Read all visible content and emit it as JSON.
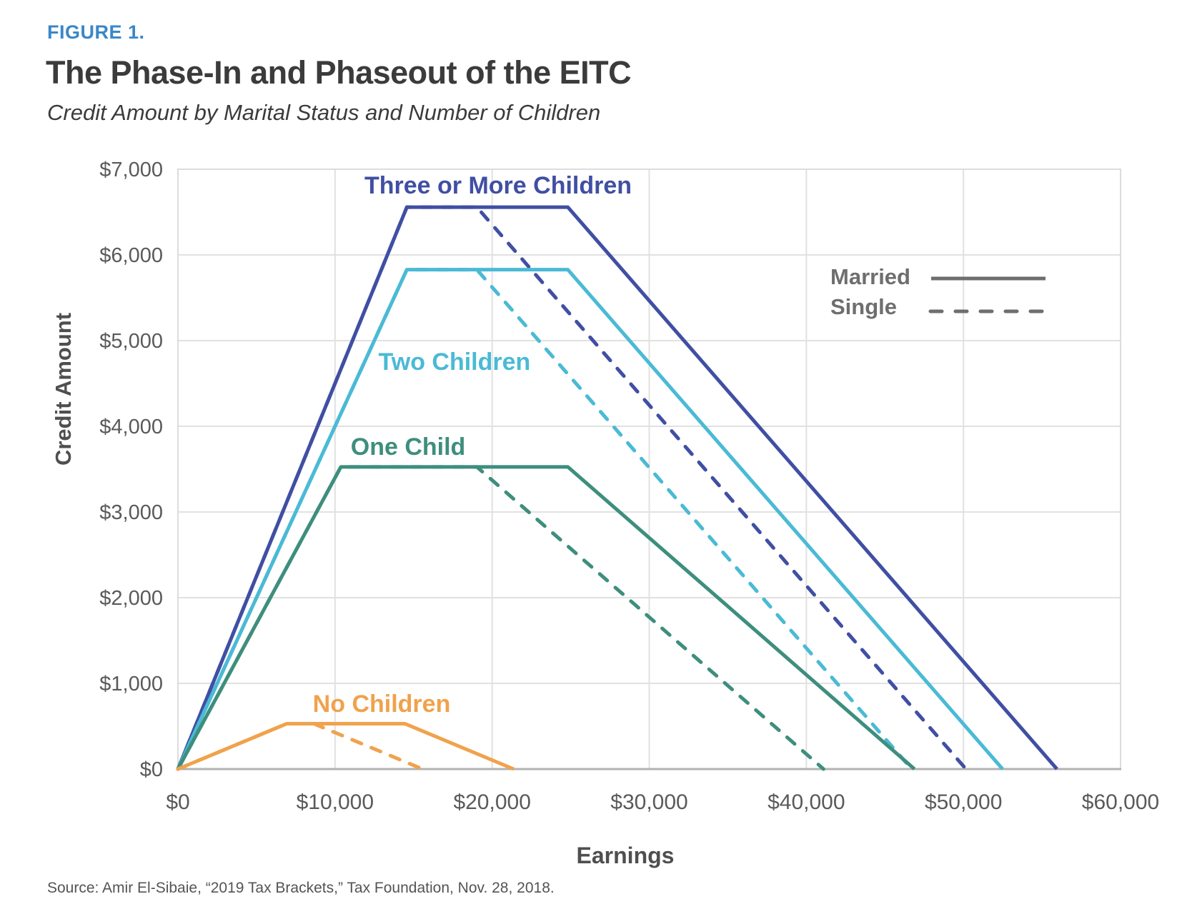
{
  "page": {
    "figure_label": "FIGURE 1.",
    "title": "The Phase-In and Phaseout of the EITC",
    "subtitle": "Credit Amount by Marital Status and Number of Children",
    "source": "Source: Amir El-Sibaie, “2019 Tax Brackets,” Tax Foundation, Nov. 28, 2018."
  },
  "colors": {
    "figure_label": "#3A87C8",
    "title": "#3B3B3B",
    "subtitle": "#3B3B3B",
    "source": "#545454",
    "tick_text": "#5A5A5A",
    "axis_title_text": "#4F4F4F",
    "gridline": "#E1E1E1",
    "plot_border": "#DCDCDC",
    "baseline": "#B3B3B3",
    "legend": "#6E6E6E",
    "three_children": "#404FA3",
    "two_children": "#4ABAD5",
    "one_child": "#3E8E7D",
    "no_children": "#F0A24C"
  },
  "chart_data": {
    "type": "line",
    "title": "The Phase-In and Phaseout of the EITC",
    "subtitle": "Credit Amount by Marital Status and Number of Children",
    "xlabel": "Earnings",
    "ylabel": "Credit Amount",
    "xlim": [
      0,
      60000
    ],
    "ylim": [
      0,
      7000
    ],
    "grid": true,
    "legend_position": "upper right",
    "x_ticks": [
      {
        "v": 0,
        "label": "$0"
      },
      {
        "v": 10000,
        "label": "$10,000"
      },
      {
        "v": 20000,
        "label": "$20,000"
      },
      {
        "v": 30000,
        "label": "$30,000"
      },
      {
        "v": 40000,
        "label": "$40,000"
      },
      {
        "v": 50000,
        "label": "$50,000"
      },
      {
        "v": 60000,
        "label": "$60,000"
      }
    ],
    "y_ticks": [
      {
        "v": 0,
        "label": "$0"
      },
      {
        "v": 1000,
        "label": "$1,000"
      },
      {
        "v": 2000,
        "label": "$2,000"
      },
      {
        "v": 3000,
        "label": "$3,000"
      },
      {
        "v": 4000,
        "label": "$4,000"
      },
      {
        "v": 5000,
        "label": "$5,000"
      },
      {
        "v": 6000,
        "label": "$6,000"
      },
      {
        "v": 7000,
        "label": "$7,000"
      }
    ],
    "legend": {
      "items": [
        {
          "label": "Married",
          "line_style": "solid"
        },
        {
          "label": "Single",
          "line_style": "dashed"
        }
      ]
    },
    "series": [
      {
        "name": "Three or More Children — Married",
        "group": "Three or More Children",
        "marital": "Married",
        "line_style": "solid",
        "color_key": "three_children",
        "points": [
          [
            0,
            0
          ],
          [
            14570,
            6557
          ],
          [
            24820,
            6557
          ],
          [
            55952,
            0
          ]
        ]
      },
      {
        "name": "Three or More Children — Single",
        "group": "Three or More Children",
        "marital": "Single",
        "line_style": "dashed",
        "color_key": "three_children",
        "points": [
          [
            0,
            0
          ],
          [
            14570,
            6557
          ],
          [
            19030,
            6557
          ],
          [
            50162,
            0
          ]
        ]
      },
      {
        "name": "Two Children — Married",
        "group": "Two Children",
        "marital": "Married",
        "line_style": "solid",
        "color_key": "two_children",
        "points": [
          [
            0,
            0
          ],
          [
            14570,
            5828
          ],
          [
            24820,
            5828
          ],
          [
            52493,
            0
          ]
        ]
      },
      {
        "name": "Two Children — Single",
        "group": "Two Children",
        "marital": "Single",
        "line_style": "dashed",
        "color_key": "two_children",
        "points": [
          [
            0,
            0
          ],
          [
            14570,
            5828
          ],
          [
            19030,
            5828
          ],
          [
            46703,
            0
          ]
        ]
      },
      {
        "name": "One Child — Married",
        "group": "One Child",
        "marital": "Married",
        "line_style": "solid",
        "color_key": "one_child",
        "points": [
          [
            0,
            0
          ],
          [
            10370,
            3526
          ],
          [
            24820,
            3526
          ],
          [
            46884,
            0
          ]
        ]
      },
      {
        "name": "One Child — Single",
        "group": "One Child",
        "marital": "Single",
        "line_style": "dashed",
        "color_key": "one_child",
        "points": [
          [
            0,
            0
          ],
          [
            10370,
            3526
          ],
          [
            19030,
            3526
          ],
          [
            41094,
            0
          ]
        ]
      },
      {
        "name": "No Children — Married",
        "group": "No Children",
        "marital": "Married",
        "line_style": "solid",
        "color_key": "no_children",
        "points": [
          [
            0,
            0
          ],
          [
            6920,
            529
          ],
          [
            14450,
            529
          ],
          [
            21370,
            0
          ]
        ]
      },
      {
        "name": "No Children — Single",
        "group": "No Children",
        "marital": "Single",
        "line_style": "dashed",
        "color_key": "no_children",
        "points": [
          [
            0,
            0
          ],
          [
            6920,
            529
          ],
          [
            8650,
            529
          ],
          [
            15570,
            0
          ]
        ]
      }
    ],
    "annotations": [
      {
        "text": "Three or More Children",
        "x": 20380,
        "y": 6717,
        "color_key": "three_children"
      },
      {
        "text": "Two Children",
        "x": 17600,
        "y": 4658,
        "color_key": "two_children"
      },
      {
        "text": "One Child",
        "x": 14650,
        "y": 3667,
        "color_key": "one_child"
      },
      {
        "text": "No Children",
        "x": 12965,
        "y": 667,
        "color_key": "no_children"
      }
    ]
  }
}
